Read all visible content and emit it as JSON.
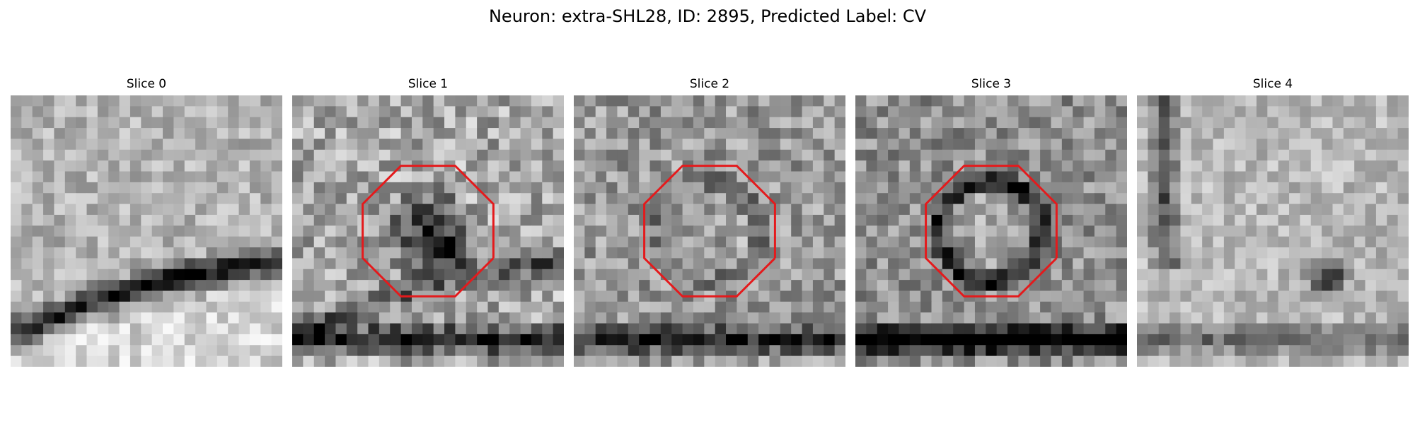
{
  "figure": {
    "title": "Neuron: extra-SHL28, ID: 2895, Predicted Label: CV"
  },
  "overlay_color": "#e41a1c",
  "panels": [
    {
      "title": "Slice 0",
      "octagon": false,
      "pattern": {
        "bg": 0.7,
        "blob": 0.0,
        "ring": 0.0,
        "dot": 0.0,
        "bandA": 0.7,
        "bandB": 0.0,
        "bright": 0.85,
        "leftStreak": 0.0,
        "noise": 0.3,
        "seed": 11
      }
    },
    {
      "title": "Slice 1",
      "octagon": true,
      "pattern": {
        "bg": 0.66,
        "blob": 0.55,
        "ring": 0.0,
        "dot": 0.55,
        "bandA": 0.35,
        "bandB": 0.55,
        "bright": 0.0,
        "leftStreak": 0.0,
        "noise": 0.45,
        "seed": 23
      }
    },
    {
      "title": "Slice 2",
      "octagon": true,
      "pattern": {
        "bg": 0.6,
        "blob": 0.1,
        "ring": 0.25,
        "dot": 0.0,
        "bandA": 0.0,
        "bandB": 0.45,
        "bright": 0.0,
        "leftStreak": 0.0,
        "noise": 0.4,
        "seed": 37
      }
    },
    {
      "title": "Slice 3",
      "octagon": true,
      "pattern": {
        "bg": 0.56,
        "blob": 0.0,
        "ring": 0.75,
        "dot": 0.0,
        "bandA": 0.0,
        "bandB": 0.7,
        "bright": 0.0,
        "leftStreak": 0.0,
        "noise": 0.38,
        "seed": 41
      }
    },
    {
      "title": "Slice 4",
      "octagon": false,
      "pattern": {
        "bg": 0.72,
        "blob": 0.0,
        "ring": 0.0,
        "dot": 0.8,
        "bandA": 0.0,
        "bandB": 0.3,
        "bright": 0.0,
        "leftStreak": 0.7,
        "noise": 0.28,
        "seed": 53
      }
    }
  ]
}
